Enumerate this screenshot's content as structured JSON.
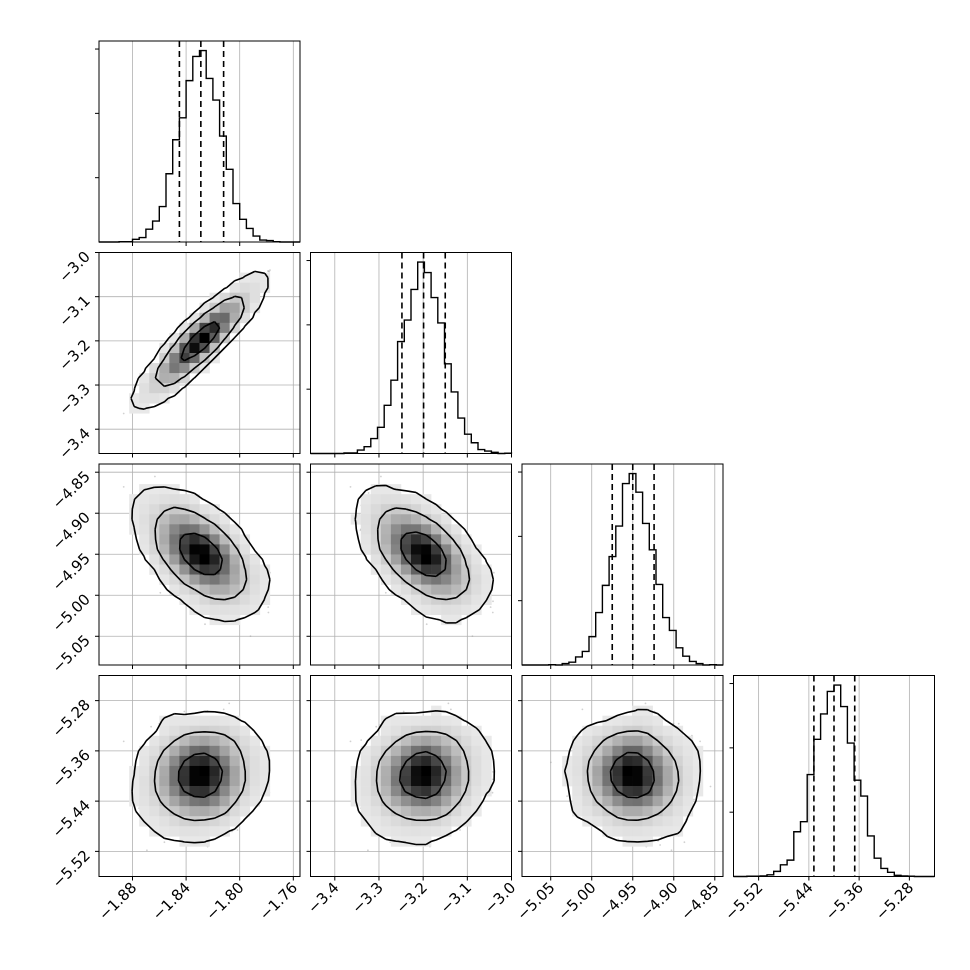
{
  "chart_data": {
    "type": "corner",
    "parameters": [
      {
        "range": [
          -1.905,
          -1.755
        ],
        "ticks": [
          -1.88,
          -1.84,
          -1.8,
          -1.76
        ],
        "tick_labels": [
          "−1.88",
          "−1.84",
          "−1.80",
          "−1.76"
        ],
        "mean": -1.829,
        "sd": 0.0158,
        "quantiles": [
          -1.845,
          -1.829,
          -1.812
        ]
      },
      {
        "range": [
          -3.455,
          -3.0
        ],
        "ticks": [
          -3.4,
          -3.3,
          -3.2,
          -3.1,
          -3.0
        ],
        "tick_labels": [
          "−3.4",
          "−3.3",
          "−3.2",
          "−3.1",
          "−3.0"
        ],
        "mean": -3.199,
        "sd": 0.0485,
        "quantiles": [
          -3.248,
          -3.199,
          -3.15
        ]
      },
      {
        "range": [
          -5.085,
          -4.84
        ],
        "ticks": [
          -5.05,
          -5.0,
          -4.95,
          -4.9,
          -4.85
        ],
        "tick_labels": [
          "−5.05",
          "−5.00",
          "−4.95",
          "−4.90",
          "−4.85"
        ],
        "mean": -4.95,
        "sd": 0.0252,
        "quantiles": [
          -4.975,
          -4.95,
          -4.924
        ]
      },
      {
        "range": [
          -5.56,
          -5.24
        ],
        "ticks": [
          -5.52,
          -5.44,
          -5.36,
          -5.28
        ],
        "tick_labels": [
          "−5.52",
          "−5.44",
          "−5.36",
          "−5.28"
        ],
        "mean": -5.4,
        "sd": 0.0325,
        "quantiles": [
          -5.432,
          -5.4,
          -5.367
        ]
      }
    ],
    "correlations": [
      [
        1.0,
        0.99,
        -0.58,
        0.1
      ],
      [
        0.99,
        1.0,
        -0.58,
        0.1
      ],
      [
        -0.58,
        -0.58,
        1.0,
        -0.05
      ],
      [
        0.1,
        0.1,
        -0.05,
        1.0
      ]
    ],
    "histogram_bins": 30,
    "levels": [
      0.393,
      0.865,
      0.989
    ],
    "grid": true,
    "title": "",
    "xlabel": "",
    "ylabel": ""
  }
}
